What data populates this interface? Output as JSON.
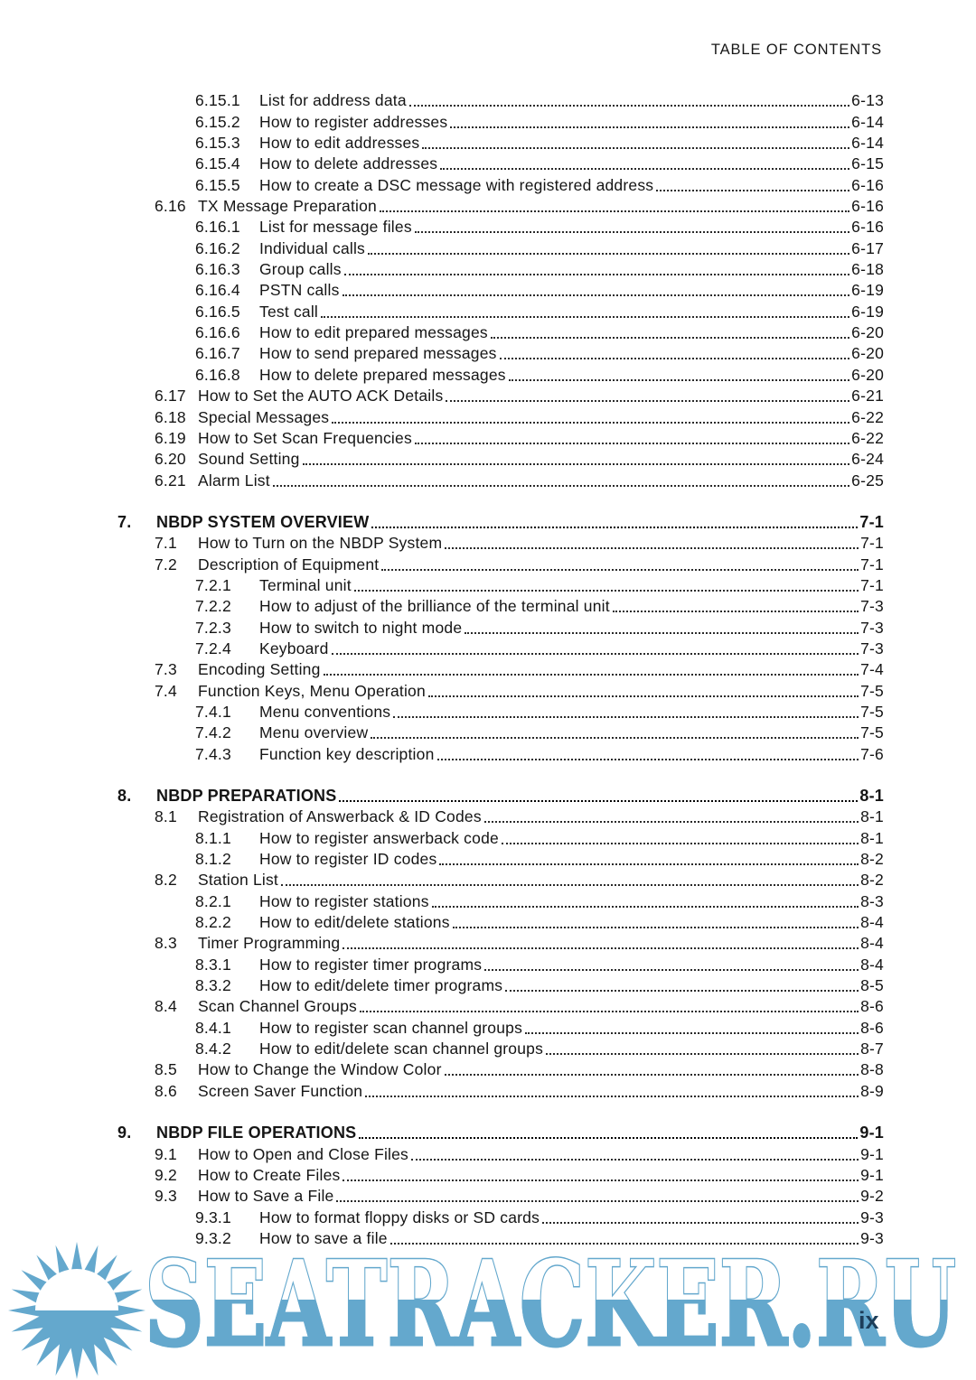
{
  "header": {
    "title": "TABLE OF CONTENTS"
  },
  "footer": {
    "page_number": "ix"
  },
  "watermark": {
    "text": "SEATRACKER.RU",
    "color": "#64a8cd",
    "sun_icon": "sun-over-sea-icon",
    "page_number_color": "#1d3e59"
  },
  "toc": {
    "rows": [
      {
        "level": 3,
        "bold": false,
        "num": "6.15.1",
        "title": "List for address data",
        "page": "6-13"
      },
      {
        "level": 3,
        "bold": false,
        "num": "6.15.2",
        "title": "How to register addresses",
        "page": "6-14"
      },
      {
        "level": 3,
        "bold": false,
        "num": "6.15.3",
        "title": "How to edit addresses",
        "page": "6-14"
      },
      {
        "level": 3,
        "bold": false,
        "num": "6.15.4",
        "title": "How to delete addresses",
        "page": "6-15"
      },
      {
        "level": 3,
        "bold": false,
        "num": "6.15.5",
        "title": "How to create a DSC message with registered address",
        "page": "6-16"
      },
      {
        "level": 2,
        "bold": false,
        "num": "6.16",
        "title": "TX Message Preparation",
        "page": "6-16"
      },
      {
        "level": 3,
        "bold": false,
        "num": "6.16.1",
        "title": "List for message files",
        "page": "6-16"
      },
      {
        "level": 3,
        "bold": false,
        "num": "6.16.2",
        "title": "Individual calls",
        "page": "6-17"
      },
      {
        "level": 3,
        "bold": false,
        "num": "6.16.3",
        "title": "Group calls",
        "page": "6-18"
      },
      {
        "level": 3,
        "bold": false,
        "num": "6.16.4",
        "title": "PSTN calls",
        "page": "6-19"
      },
      {
        "level": 3,
        "bold": false,
        "num": "6.16.5",
        "title": "Test call",
        "page": "6-19"
      },
      {
        "level": 3,
        "bold": false,
        "num": "6.16.6",
        "title": "How to edit prepared messages",
        "page": "6-20"
      },
      {
        "level": 3,
        "bold": false,
        "num": "6.16.7",
        "title": "How to send prepared messages",
        "page": "6-20"
      },
      {
        "level": 3,
        "bold": false,
        "num": "6.16.8",
        "title": "How to delete prepared messages",
        "page": "6-20"
      },
      {
        "level": 2,
        "bold": false,
        "num": "6.17",
        "title": "How to Set the AUTO ACK Details",
        "page": "6-21"
      },
      {
        "level": 2,
        "bold": false,
        "num": "6.18",
        "title": "Special Messages",
        "page": "6-22"
      },
      {
        "level": 2,
        "bold": false,
        "num": "6.19",
        "title": "How to Set Scan Frequencies",
        "page": "6-22"
      },
      {
        "level": 2,
        "bold": false,
        "num": "6.20",
        "title": "Sound Setting",
        "page": "6-24"
      },
      {
        "level": 2,
        "bold": false,
        "num": "6.21",
        "title": "Alarm List",
        "page": "6-25"
      },
      {
        "level": 1,
        "bold": true,
        "num": "7.",
        "title": "NBDP SYSTEM OVERVIEW",
        "page": "7-1"
      },
      {
        "level": 2,
        "bold": false,
        "num": "7.1",
        "title": "How to Turn on the NBDP System",
        "page": "7-1"
      },
      {
        "level": 2,
        "bold": false,
        "num": "7.2",
        "title": "Description of Equipment",
        "page": "7-1"
      },
      {
        "level": 3,
        "bold": false,
        "num": "7.2.1",
        "title": "Terminal unit",
        "page": "7-1"
      },
      {
        "level": 3,
        "bold": false,
        "num": "7.2.2",
        "title": "How to adjust of the brilliance of the terminal unit",
        "page": "7-3"
      },
      {
        "level": 3,
        "bold": false,
        "num": "7.2.3",
        "title": "How to switch to night mode",
        "page": "7-3"
      },
      {
        "level": 3,
        "bold": false,
        "num": "7.2.4",
        "title": "Keyboard",
        "page": "7-3"
      },
      {
        "level": 2,
        "bold": false,
        "num": "7.3",
        "title": "Encoding Setting",
        "page": "7-4"
      },
      {
        "level": 2,
        "bold": false,
        "num": "7.4",
        "title": "Function Keys, Menu Operation",
        "page": "7-5"
      },
      {
        "level": 3,
        "bold": false,
        "num": "7.4.1",
        "title": "Menu conventions",
        "page": "7-5"
      },
      {
        "level": 3,
        "bold": false,
        "num": "7.4.2",
        "title": "Menu overview",
        "page": "7-5"
      },
      {
        "level": 3,
        "bold": false,
        "num": "7.4.3",
        "title": "Function key description",
        "page": "7-6"
      },
      {
        "level": 1,
        "bold": true,
        "num": "8.",
        "title": "NBDP PREPARATIONS",
        "page": "8-1"
      },
      {
        "level": 2,
        "bold": false,
        "num": "8.1",
        "title": "Registration of Answerback & ID Codes",
        "page": "8-1"
      },
      {
        "level": 3,
        "bold": false,
        "num": "8.1.1",
        "title": "How to register answerback code",
        "page": "8-1"
      },
      {
        "level": 3,
        "bold": false,
        "num": "8.1.2",
        "title": "How to register ID codes",
        "page": "8-2"
      },
      {
        "level": 2,
        "bold": false,
        "num": "8.2",
        "title": "Station List",
        "page": "8-2"
      },
      {
        "level": 3,
        "bold": false,
        "num": "8.2.1",
        "title": "How to register stations",
        "page": "8-3"
      },
      {
        "level": 3,
        "bold": false,
        "num": "8.2.2",
        "title": "How to edit/delete stations",
        "page": "8-4"
      },
      {
        "level": 2,
        "bold": false,
        "num": "8.3",
        "title": "Timer Programming",
        "page": "8-4"
      },
      {
        "level": 3,
        "bold": false,
        "num": "8.3.1",
        "title": "How to register timer programs",
        "page": "8-4"
      },
      {
        "level": 3,
        "bold": false,
        "num": "8.3.2",
        "title": "How to edit/delete timer programs",
        "page": "8-5"
      },
      {
        "level": 2,
        "bold": false,
        "num": "8.4",
        "title": "Scan Channel Groups",
        "page": "8-6"
      },
      {
        "level": 3,
        "bold": false,
        "num": "8.4.1",
        "title": "How to register scan channel groups",
        "page": "8-6"
      },
      {
        "level": 3,
        "bold": false,
        "num": "8.4.2",
        "title": "How to edit/delete scan channel groups",
        "page": "8-7"
      },
      {
        "level": 2,
        "bold": false,
        "num": "8.5",
        "title": "How to Change the Window Color",
        "page": "8-8"
      },
      {
        "level": 2,
        "bold": false,
        "num": "8.6",
        "title": "Screen Saver Function",
        "page": "8-9"
      },
      {
        "level": 1,
        "bold": true,
        "num": "9.",
        "title": "NBDP FILE OPERATIONS",
        "page": "9-1"
      },
      {
        "level": 2,
        "bold": false,
        "num": "9.1",
        "title": "How to Open and Close Files",
        "page": "9-1"
      },
      {
        "level": 2,
        "bold": false,
        "num": "9.2",
        "title": "How to Create Files",
        "page": "9-1"
      },
      {
        "level": 2,
        "bold": false,
        "num": "9.3",
        "title": "How to Save a File",
        "page": "9-2"
      },
      {
        "level": 3,
        "bold": false,
        "num": "9.3.1",
        "title": "How to format floppy disks or SD cards",
        "page": "9-3"
      },
      {
        "level": 3,
        "bold": false,
        "num": "9.3.2",
        "title": "How to save a file",
        "page": "9-3"
      }
    ]
  }
}
